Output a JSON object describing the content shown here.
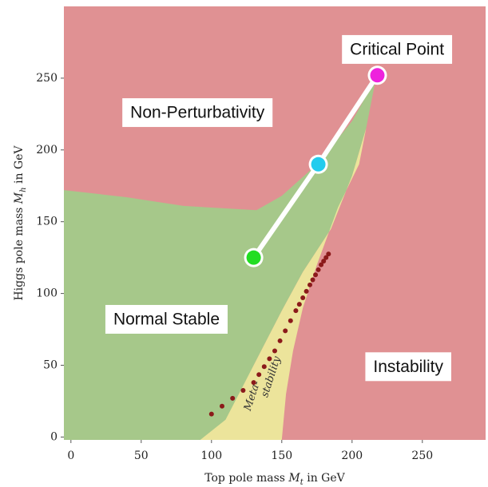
{
  "chart_data": {
    "type": "area",
    "xlabel": "Top pole mass M_t in GeV",
    "ylabel": "Higgs pole mass M_h in GeV",
    "xlabel_parts": [
      "Top pole mass ",
      "M",
      "t",
      " in GeV"
    ],
    "ylabel_parts": [
      "Higgs pole mass ",
      "M",
      "h",
      " in GeV"
    ],
    "xlim": [
      -5,
      295
    ],
    "ylim": [
      -2,
      300
    ],
    "x_ticks": [
      0,
      50,
      100,
      150,
      200,
      250
    ],
    "y_ticks": [
      0,
      50,
      100,
      150,
      200,
      250
    ],
    "x_tick_labels": [
      "0",
      "50",
      "100",
      "150",
      "200",
      "250"
    ],
    "y_tick_labels": [
      "0",
      "50",
      "100",
      "150",
      "200",
      "250"
    ],
    "grid": false,
    "regions": [
      {
        "name": "Non-Perturbativity",
        "color": "#e09193"
      },
      {
        "name": "Normal Stable",
        "color": "#a6c88a"
      },
      {
        "name": "Meta-stability",
        "color": "#ece49b"
      },
      {
        "name": "Instability",
        "color": "#e09193"
      }
    ],
    "stable_boundary": [
      [
        -5,
        172
      ],
      [
        40,
        167
      ],
      [
        80,
        161
      ],
      [
        132,
        158
      ],
      [
        150,
        168
      ],
      [
        175,
        190
      ],
      [
        200,
        220
      ],
      [
        217,
        250
      ],
      [
        210,
        215
      ],
      [
        200,
        182
      ],
      [
        185,
        145
      ],
      [
        165,
        115
      ],
      [
        150,
        88
      ],
      [
        130,
        50
      ],
      [
        112,
        12
      ],
      [
        100,
        0
      ],
      [
        92,
        -2
      ],
      [
        -5,
        -2
      ]
    ],
    "metastable_boundary": [
      [
        92,
        -2
      ],
      [
        110,
        12
      ],
      [
        130,
        50
      ],
      [
        150,
        88
      ],
      [
        165,
        115
      ],
      [
        185,
        145
      ],
      [
        200,
        182
      ],
      [
        210,
        215
      ],
      [
        217,
        250
      ],
      [
        205,
        190
      ],
      [
        190,
        160
      ],
      [
        175,
        120
      ],
      [
        165,
        90
      ],
      [
        158,
        60
      ],
      [
        153,
        30
      ],
      [
        150,
        -2
      ]
    ],
    "dotted_boundary": [
      [
        100,
        16
      ],
      [
        130,
        38
      ],
      [
        145,
        60
      ],
      [
        160,
        88
      ],
      [
        170,
        106
      ],
      [
        178,
        120
      ],
      [
        185,
        130
      ]
    ],
    "path": [
      {
        "label": "",
        "x": 130,
        "y": 125,
        "color": "#22dd22"
      },
      {
        "label": "",
        "x": 176,
        "y": 190,
        "color": "#22ccee"
      },
      {
        "label": "Critical Point",
        "x": 218,
        "y": 252,
        "color": "#ee22dd"
      }
    ],
    "region_labels": [
      {
        "text": "Non-Perturbativity",
        "x": 90,
        "y": 226
      },
      {
        "text": "Normal Stable",
        "x": 68,
        "y": 82
      },
      {
        "text": "Instability",
        "x": 240,
        "y": 49
      },
      {
        "text": "Critical Point",
        "x": 232,
        "y": 270
      }
    ],
    "meta_label_parts": [
      "Meta-",
      "stability"
    ]
  }
}
